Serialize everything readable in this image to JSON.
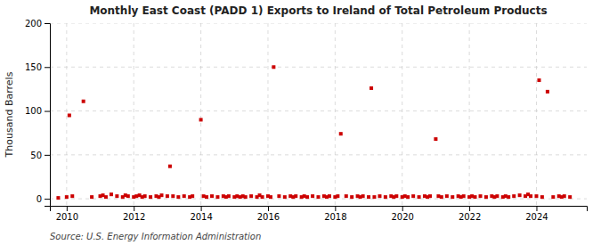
{
  "chart_data": {
    "type": "scatter",
    "title": "Monthly East Coast (PADD 1) Exports to Ireland of Total Petroleum Products",
    "ylabel": "Thousand Barrels",
    "annotations": [
      "Source: U.S. Energy Information Administration"
    ],
    "color": "#cc0000",
    "marker": "square",
    "grid": true,
    "xlim": [
      2009.5,
      2025.5
    ],
    "ylim": [
      -8,
      200
    ],
    "xticks": [
      2010,
      2012,
      2014,
      2016,
      2018,
      2020,
      2022,
      2024
    ],
    "yticks": [
      0,
      50,
      100,
      150,
      200
    ],
    "x": [
      2009.75,
      2010.0,
      2010.08,
      2010.17,
      2010.5,
      2010.75,
      2011.0,
      2011.08,
      2011.17,
      2011.33,
      2011.5,
      2011.67,
      2011.75,
      2011.83,
      2012.0,
      2012.08,
      2012.17,
      2012.25,
      2012.33,
      2012.5,
      2012.67,
      2012.75,
      2012.83,
      2013.0,
      2013.08,
      2013.17,
      2013.33,
      2013.5,
      2013.67,
      2013.75,
      2014.0,
      2014.08,
      2014.17,
      2014.33,
      2014.5,
      2014.67,
      2014.75,
      2014.83,
      2015.0,
      2015.08,
      2015.17,
      2015.25,
      2015.33,
      2015.5,
      2015.67,
      2015.75,
      2015.83,
      2016.0,
      2016.08,
      2016.17,
      2016.33,
      2016.5,
      2016.67,
      2016.75,
      2016.83,
      2017.0,
      2017.08,
      2017.17,
      2017.33,
      2017.5,
      2017.67,
      2017.75,
      2017.83,
      2018.0,
      2018.08,
      2018.17,
      2018.33,
      2018.5,
      2018.67,
      2018.75,
      2018.83,
      2019.0,
      2019.08,
      2019.17,
      2019.33,
      2019.5,
      2019.67,
      2019.75,
      2019.83,
      2020.0,
      2020.08,
      2020.17,
      2020.33,
      2020.5,
      2020.67,
      2020.75,
      2020.83,
      2021.0,
      2021.08,
      2021.17,
      2021.33,
      2021.5,
      2021.67,
      2021.75,
      2021.83,
      2022.0,
      2022.08,
      2022.17,
      2022.33,
      2022.5,
      2022.67,
      2022.75,
      2022.83,
      2023.0,
      2023.08,
      2023.17,
      2023.33,
      2023.5,
      2023.67,
      2023.75,
      2023.83,
      2024.0,
      2024.08,
      2024.17,
      2024.33,
      2024.5,
      2024.67,
      2024.75,
      2024.83,
      2025.0
    ],
    "values": [
      1,
      2,
      95,
      3,
      111,
      2,
      3,
      4,
      2,
      5,
      3,
      2,
      4,
      3,
      2,
      3,
      4,
      2,
      3,
      2,
      3,
      2,
      4,
      3,
      37,
      3,
      2,
      3,
      2,
      3,
      90,
      3,
      2,
      3,
      2,
      3,
      2,
      3,
      2,
      3,
      2,
      3,
      2,
      3,
      2,
      4,
      2,
      3,
      2,
      150,
      3,
      2,
      3,
      2,
      3,
      2,
      3,
      2,
      3,
      2,
      3,
      2,
      3,
      2,
      3,
      74,
      3,
      2,
      3,
      2,
      3,
      2,
      126,
      2,
      3,
      2,
      3,
      2,
      3,
      2,
      3,
      2,
      3,
      2,
      3,
      2,
      3,
      68,
      3,
      2,
      3,
      2,
      3,
      2,
      3,
      2,
      3,
      2,
      3,
      2,
      3,
      2,
      3,
      2,
      3,
      2,
      3,
      4,
      3,
      5,
      3,
      3,
      135,
      2,
      122,
      2,
      3,
      2,
      3,
      2
    ]
  }
}
